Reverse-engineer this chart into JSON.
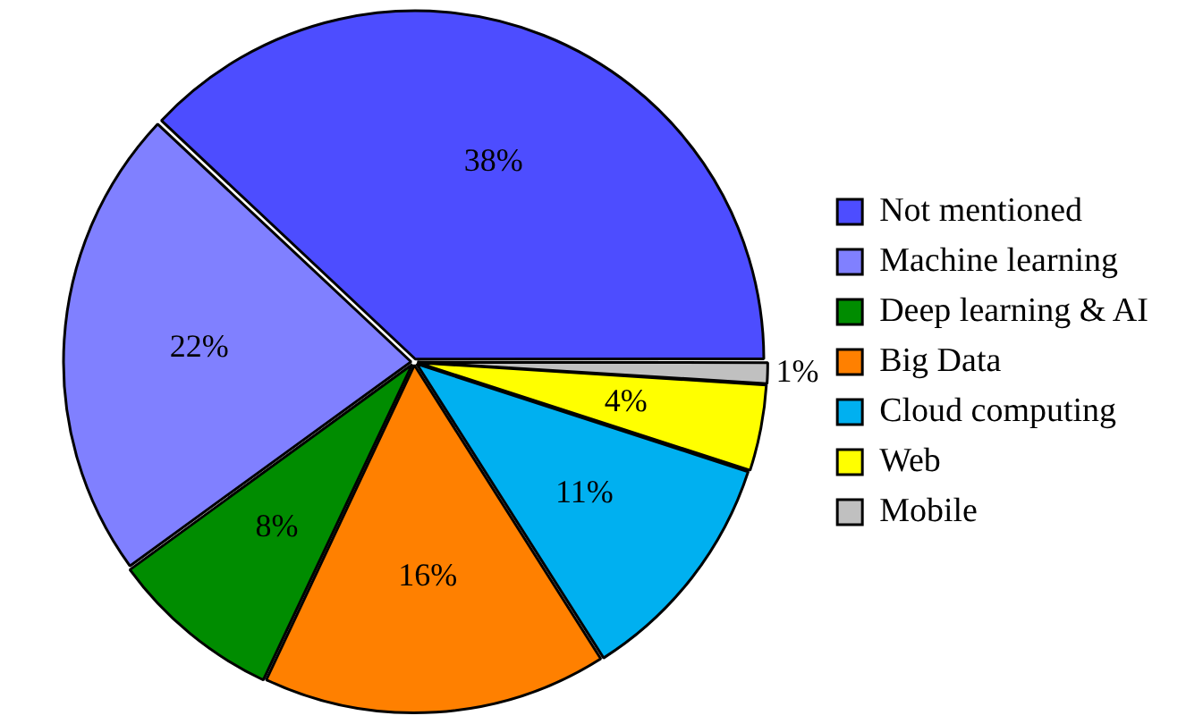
{
  "chart_data": {
    "type": "pie",
    "categories": [
      "Not mentioned",
      "Machine learning",
      "Deep learning & AI",
      "Big Data",
      "Cloud computing",
      "Web",
      "Mobile"
    ],
    "values": [
      38,
      22,
      8,
      16,
      11,
      4,
      1
    ],
    "colors": [
      "#4d4dff",
      "#8080ff",
      "#008c00",
      "#ff8000",
      "#00b0f0",
      "#ffff00",
      "#c0c0c0"
    ],
    "value_labels": [
      "38%",
      "22%",
      "8%",
      "16%",
      "11%",
      "4%",
      "1%"
    ],
    "legend": "right"
  }
}
